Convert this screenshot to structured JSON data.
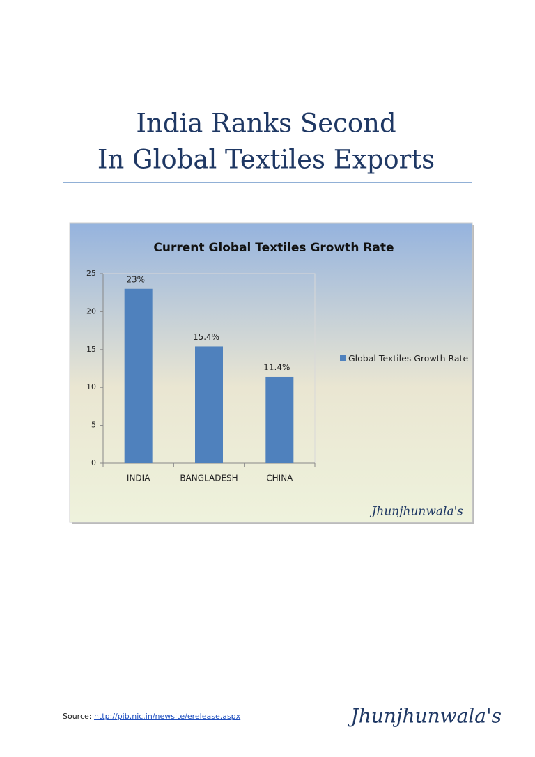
{
  "header": {
    "title_lines": [
      "India Ranks Second",
      "In Global Textiles Exports"
    ]
  },
  "chart_data": {
    "type": "bar",
    "title": "Current Global Textiles Growth Rate",
    "categories": [
      "INDIA",
      "BANGLADESH",
      "CHINA"
    ],
    "series": [
      {
        "name": "Global Textiles Growth Rate",
        "color": "#4f81bd",
        "values": [
          23,
          15.4,
          11.4
        ],
        "value_labels": [
          "23%",
          "15.4%",
          "11.4%"
        ]
      }
    ],
    "ylim": [
      0,
      25
    ],
    "yticks": [
      0,
      5,
      10,
      15,
      20,
      25
    ],
    "grid": false,
    "legend": "right",
    "watermark": "Jhunjhunwala's"
  },
  "footer": {
    "source_label": "Source:",
    "source_link": "http://pib.nic.in/newsite/erelease.aspx",
    "brand": "Jhunjhunwala's"
  }
}
